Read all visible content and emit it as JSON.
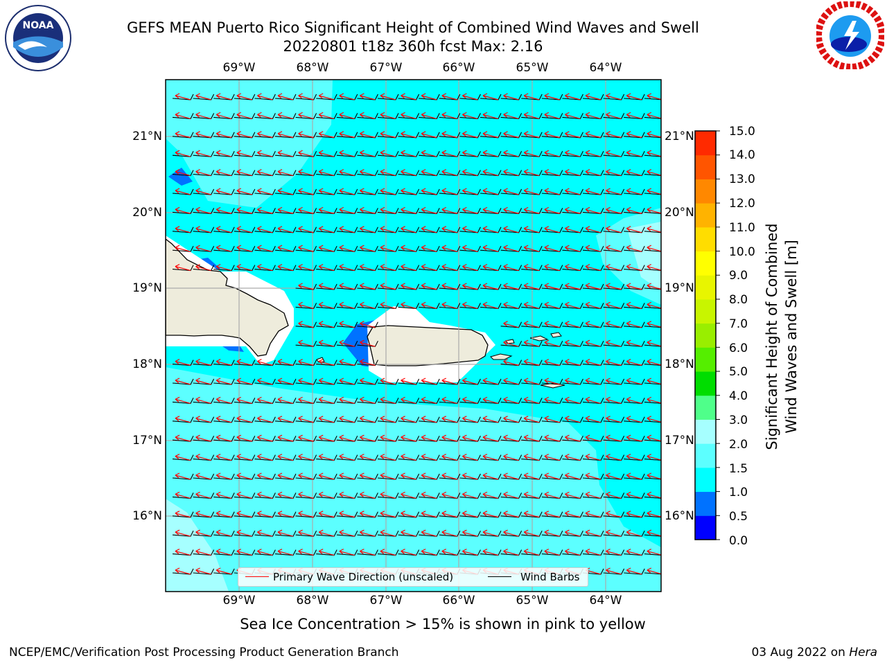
{
  "header": {
    "title_line1": "GEFS MEAN Puerto Rico Significant Height of Combined Wind Waves and Swell",
    "title_line2": "20220801 t18z 360h fcst   Max: 2.16"
  },
  "map": {
    "lon_labels": [
      "69°W",
      "68°W",
      "67°W",
      "66°W",
      "65°W",
      "64°W"
    ],
    "lat_labels": [
      "21°N",
      "20°N",
      "19°N",
      "18°N",
      "17°N",
      "16°N"
    ],
    "ocean_color": "#00ffff",
    "land_color": "#eeecdc",
    "icons": [
      "noaa-logo",
      "nws-logo"
    ]
  },
  "legend": {
    "wave_label": "Primary Wave Direction (unscaled)",
    "barb_label": "Wind Barbs",
    "wave_color": "#ff0000",
    "barb_color": "#000000"
  },
  "colorbar": {
    "ticks": [
      "15.0",
      "14.0",
      "13.0",
      "12.0",
      "11.0",
      "10.0",
      "9.0",
      "8.0",
      "7.0",
      "6.0",
      "5.0",
      "4.0",
      "3.0",
      "2.0",
      "1.5",
      "1.0",
      "0.5",
      "0.0"
    ],
    "colors": [
      "#0000ff",
      "#0072ff",
      "#00ffff",
      "#5cffff",
      "#a6ffff",
      "#4fff8a",
      "#00dd00",
      "#55ee00",
      "#99ee00",
      "#c8f500",
      "#e8f500",
      "#ffff00",
      "#ffdd00",
      "#ffb300",
      "#ff8800",
      "#ff5500",
      "#ff2a00",
      "#ff0000"
    ],
    "label_line1": "Significant Height of Combined",
    "label_line2": "Wind Waves and Swell [m]"
  },
  "notes": {
    "ice": "Sea Ice Concentration > 15% is shown in pink to yellow",
    "footer_left": "NCEP/EMC/Verification Post Processing Product Generation Branch",
    "footer_date": "03 Aug 2022 on",
    "footer_host": "Hera"
  }
}
